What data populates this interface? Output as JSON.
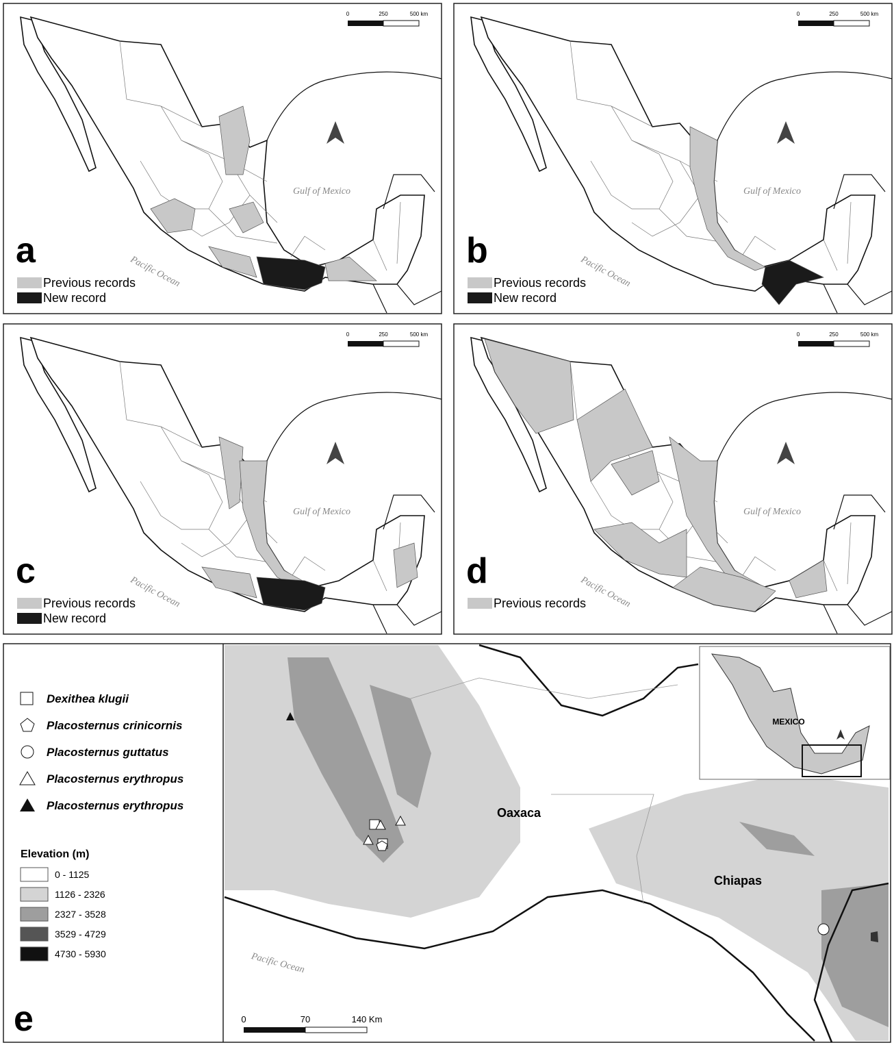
{
  "scale_bar": {
    "labels": [
      "0",
      "250",
      "500 km"
    ]
  },
  "gulf_label": "Gulf of Mexico",
  "pacific_label": "Pacific Ocean",
  "panels": [
    {
      "letter": "a",
      "legend": [
        "Previous records",
        "New record"
      ]
    },
    {
      "letter": "b",
      "legend": [
        "Previous records",
        "New record"
      ]
    },
    {
      "letter": "c",
      "legend": [
        "Previous records",
        "New record"
      ]
    },
    {
      "letter": "d",
      "legend": [
        "Previous records"
      ]
    }
  ],
  "panel_e": {
    "letter": "e",
    "species": [
      "Dexithea klugii",
      "Placosternus crinicornis",
      "Placosternus guttatus",
      "Placosternus erythropus",
      "Placosternus erythropus"
    ],
    "elevation_title": "Elevation (m)",
    "elevation_classes": [
      "0 - 1125",
      "1126 - 2326",
      "2327 - 3528",
      "3529 - 4729",
      "4730 - 5930"
    ],
    "state_labels": [
      "Oaxaca",
      "Chiapas"
    ],
    "pacific_label": "Pacific Ocean",
    "inset_label": "MEXICO",
    "scale_labels": [
      "0",
      "70",
      "140 Km"
    ]
  }
}
